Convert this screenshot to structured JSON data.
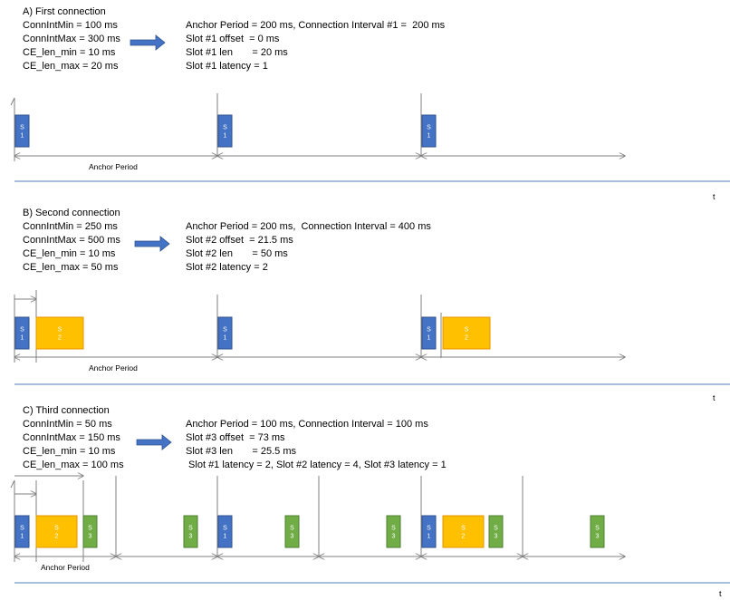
{
  "sections": [
    {
      "title": "A) First connection",
      "params": [
        "ConnIntMin = 100 ms",
        "ConnIntMax = 300 ms",
        "CE_len_min = 10 ms",
        "CE_len_max = 20 ms"
      ],
      "result": [
        "Anchor Period = 200 ms, Connection Interval #1 =  200 ms",
        "Slot #1 offset  = 0 ms",
        "Slot #1 len       = 20 ms",
        "Slot #1 latency = 1"
      ],
      "anchor_label": "Anchor Period",
      "time_label": "t",
      "slots": [
        {
          "label": "S\n1",
          "color": "#4472C4"
        },
        {
          "label": "S\n1",
          "color": "#4472C4"
        },
        {
          "label": "S\n1",
          "color": "#4472C4"
        }
      ]
    },
    {
      "title": "B) Second connection",
      "params": [
        "ConnIntMin = 250 ms",
        "ConnIntMax = 500 ms",
        "CE_len_min = 10 ms",
        "CE_len_max = 50 ms"
      ],
      "result": [
        "Anchor Period = 200 ms,  Connection Interval = 400 ms",
        "Slot #2 offset  = 21.5 ms",
        "Slot #2 len       = 50 ms",
        "Slot #2 latency = 2"
      ],
      "anchor_label": "Anchor Period",
      "time_label": "t",
      "slots": [
        {
          "label": "S\n1",
          "color": "#4472C4"
        },
        {
          "label": "S\n2",
          "color": "#FFC000"
        },
        {
          "label": "S\n1",
          "color": "#4472C4"
        },
        {
          "label": "S\n1",
          "color": "#4472C4"
        },
        {
          "label": "S\n2",
          "color": "#FFC000"
        }
      ]
    },
    {
      "title": "C) Third connection",
      "params": [
        "ConnIntMin = 50 ms",
        "ConnIntMax = 150 ms",
        "CE_len_min = 10 ms",
        "CE_len_max = 100 ms"
      ],
      "result": [
        "Anchor Period = 100 ms, Connection Interval = 100 ms",
        "Slot #3 offset  = 73 ms",
        "Slot #3 len       = 25.5 ms",
        " Slot #1 latency = 2, Slot #2 latency = 4, Slot #3 latency = 1"
      ],
      "anchor_label": "Anchor Period",
      "time_label": "t",
      "slots": [
        {
          "label": "S\n1",
          "color": "#4472C4"
        },
        {
          "label": "S\n2",
          "color": "#FFC000"
        },
        {
          "label": "S\n3",
          "color": "#70AD47"
        },
        {
          "label": "S\n3",
          "color": "#70AD47"
        },
        {
          "label": "S\n1",
          "color": "#4472C4"
        },
        {
          "label": "S\n3",
          "color": "#70AD47"
        },
        {
          "label": "S\n3",
          "color": "#70AD47"
        },
        {
          "label": "S\n1",
          "color": "#4472C4"
        },
        {
          "label": "S\n2",
          "color": "#FFC000"
        },
        {
          "label": "S\n3",
          "color": "#70AD47"
        },
        {
          "label": "S\n3",
          "color": "#70AD47"
        }
      ]
    }
  ],
  "colors": {
    "separator": "#4F81BD",
    "arrow_fill": "#4472C4",
    "timeline": "#808080"
  }
}
